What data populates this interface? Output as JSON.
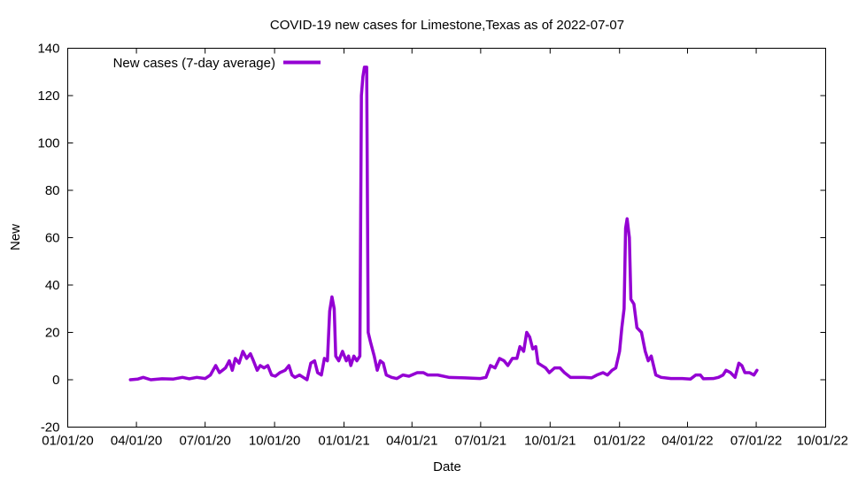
{
  "chart_data": {
    "type": "line",
    "title": "COVID-19 new cases for Limestone,Texas as of 2022-07-07",
    "xlabel": "Date",
    "ylabel": "New",
    "x_range": [
      "2020-01-01",
      "2022-10-01"
    ],
    "ylim": [
      -20,
      140
    ],
    "x_ticks": [
      "01/01/20",
      "04/01/20",
      "07/01/20",
      "10/01/20",
      "01/01/21",
      "04/01/21",
      "07/01/21",
      "10/01/21",
      "01/01/22",
      "04/01/22",
      "07/01/22",
      "10/01/22"
    ],
    "x_tick_dates": [
      "2020-01-01",
      "2020-04-01",
      "2020-07-01",
      "2020-10-01",
      "2021-01-01",
      "2021-04-01",
      "2021-07-01",
      "2021-10-01",
      "2022-01-01",
      "2022-04-01",
      "2022-07-01",
      "2022-10-01"
    ],
    "y_ticks": [
      -20,
      0,
      20,
      40,
      60,
      80,
      100,
      120,
      140
    ],
    "grid": false,
    "legend_position": "top-left",
    "series": [
      {
        "name": "New cases (7-day average)",
        "color": "#9400d3",
        "points": [
          [
            "2020-03-24",
            0
          ],
          [
            "2020-04-03",
            0.3
          ],
          [
            "2020-04-10",
            1
          ],
          [
            "2020-04-20",
            0
          ],
          [
            "2020-05-05",
            0.4
          ],
          [
            "2020-05-20",
            0.3
          ],
          [
            "2020-06-01",
            1
          ],
          [
            "2020-06-10",
            0.4
          ],
          [
            "2020-06-20",
            1
          ],
          [
            "2020-07-01",
            0.5
          ],
          [
            "2020-07-08",
            2
          ],
          [
            "2020-07-15",
            6
          ],
          [
            "2020-07-20",
            3
          ],
          [
            "2020-07-28",
            5
          ],
          [
            "2020-08-02",
            8
          ],
          [
            "2020-08-06",
            4
          ],
          [
            "2020-08-10",
            9
          ],
          [
            "2020-08-15",
            7
          ],
          [
            "2020-08-20",
            12
          ],
          [
            "2020-08-25",
            9
          ],
          [
            "2020-08-30",
            11
          ],
          [
            "2020-09-03",
            8
          ],
          [
            "2020-09-08",
            4
          ],
          [
            "2020-09-12",
            6
          ],
          [
            "2020-09-17",
            5
          ],
          [
            "2020-09-22",
            6
          ],
          [
            "2020-09-27",
            2
          ],
          [
            "2020-10-02",
            1.5
          ],
          [
            "2020-10-08",
            3
          ],
          [
            "2020-10-15",
            4
          ],
          [
            "2020-10-20",
            6
          ],
          [
            "2020-10-24",
            2
          ],
          [
            "2020-10-28",
            1
          ],
          [
            "2020-11-03",
            2
          ],
          [
            "2020-11-08",
            1
          ],
          [
            "2020-11-13",
            0
          ],
          [
            "2020-11-18",
            7
          ],
          [
            "2020-11-23",
            8
          ],
          [
            "2020-11-27",
            3
          ],
          [
            "2020-12-02",
            2
          ],
          [
            "2020-12-06",
            9
          ],
          [
            "2020-12-10",
            8
          ],
          [
            "2020-12-13",
            29
          ],
          [
            "2020-12-16",
            35
          ],
          [
            "2020-12-19",
            30
          ],
          [
            "2020-12-21",
            10
          ],
          [
            "2020-12-25",
            8
          ],
          [
            "2020-12-30",
            12
          ],
          [
            "2021-01-04",
            8
          ],
          [
            "2021-01-07",
            10
          ],
          [
            "2021-01-10",
            6
          ],
          [
            "2021-01-14",
            10
          ],
          [
            "2021-01-18",
            8
          ],
          [
            "2021-01-22",
            10
          ],
          [
            "2021-01-24",
            120
          ],
          [
            "2021-01-26",
            128
          ],
          [
            "2021-01-28",
            132
          ],
          [
            "2021-01-31",
            132
          ],
          [
            "2021-02-02",
            20
          ],
          [
            "2021-02-05",
            16
          ],
          [
            "2021-02-10",
            10
          ],
          [
            "2021-02-14",
            4
          ],
          [
            "2021-02-18",
            8
          ],
          [
            "2021-02-22",
            7
          ],
          [
            "2021-02-26",
            2
          ],
          [
            "2021-03-05",
            1
          ],
          [
            "2021-03-12",
            0.5
          ],
          [
            "2021-03-20",
            2
          ],
          [
            "2021-03-28",
            1.5
          ],
          [
            "2021-04-08",
            3
          ],
          [
            "2021-04-16",
            3
          ],
          [
            "2021-04-22",
            2
          ],
          [
            "2021-05-05",
            2
          ],
          [
            "2021-05-20",
            1
          ],
          [
            "2021-06-10",
            0.8
          ],
          [
            "2021-06-30",
            0.5
          ],
          [
            "2021-07-08",
            1
          ],
          [
            "2021-07-14",
            6
          ],
          [
            "2021-07-20",
            5
          ],
          [
            "2021-07-26",
            9
          ],
          [
            "2021-08-01",
            8
          ],
          [
            "2021-08-06",
            6
          ],
          [
            "2021-08-12",
            9
          ],
          [
            "2021-08-18",
            9
          ],
          [
            "2021-08-22",
            14
          ],
          [
            "2021-08-27",
            12
          ],
          [
            "2021-08-31",
            20
          ],
          [
            "2021-09-04",
            18
          ],
          [
            "2021-09-08",
            13
          ],
          [
            "2021-09-12",
            14
          ],
          [
            "2021-09-15",
            7
          ],
          [
            "2021-09-20",
            6
          ],
          [
            "2021-09-25",
            5
          ],
          [
            "2021-09-30",
            3
          ],
          [
            "2021-10-07",
            5
          ],
          [
            "2021-10-14",
            5
          ],
          [
            "2021-10-20",
            3
          ],
          [
            "2021-10-28",
            1
          ],
          [
            "2021-11-05",
            1
          ],
          [
            "2021-11-15",
            1
          ],
          [
            "2021-11-25",
            0.8
          ],
          [
            "2021-12-02",
            2
          ],
          [
            "2021-12-10",
            3
          ],
          [
            "2021-12-16",
            2
          ],
          [
            "2021-12-22",
            4
          ],
          [
            "2021-12-27",
            5
          ],
          [
            "2022-01-01",
            12
          ],
          [
            "2022-01-04",
            22
          ],
          [
            "2022-01-07",
            30
          ],
          [
            "2022-01-09",
            64
          ],
          [
            "2022-01-11",
            68
          ],
          [
            "2022-01-14",
            60
          ],
          [
            "2022-01-16",
            34
          ],
          [
            "2022-01-20",
            32
          ],
          [
            "2022-01-24",
            22
          ],
          [
            "2022-01-30",
            20
          ],
          [
            "2022-02-04",
            12
          ],
          [
            "2022-02-08",
            8
          ],
          [
            "2022-02-12",
            10
          ],
          [
            "2022-02-15",
            6
          ],
          [
            "2022-02-18",
            2
          ],
          [
            "2022-02-25",
            1
          ],
          [
            "2022-03-10",
            0.5
          ],
          [
            "2022-03-25",
            0.5
          ],
          [
            "2022-04-05",
            0.3
          ],
          [
            "2022-04-12",
            2
          ],
          [
            "2022-04-18",
            2
          ],
          [
            "2022-04-22",
            0.4
          ],
          [
            "2022-05-05",
            0.5
          ],
          [
            "2022-05-12",
            1
          ],
          [
            "2022-05-18",
            2
          ],
          [
            "2022-05-22",
            4
          ],
          [
            "2022-05-28",
            3
          ],
          [
            "2022-06-03",
            1
          ],
          [
            "2022-06-08",
            7
          ],
          [
            "2022-06-12",
            6
          ],
          [
            "2022-06-16",
            3
          ],
          [
            "2022-06-22",
            3
          ],
          [
            "2022-06-28",
            2
          ],
          [
            "2022-07-02",
            4
          ]
        ]
      }
    ]
  }
}
